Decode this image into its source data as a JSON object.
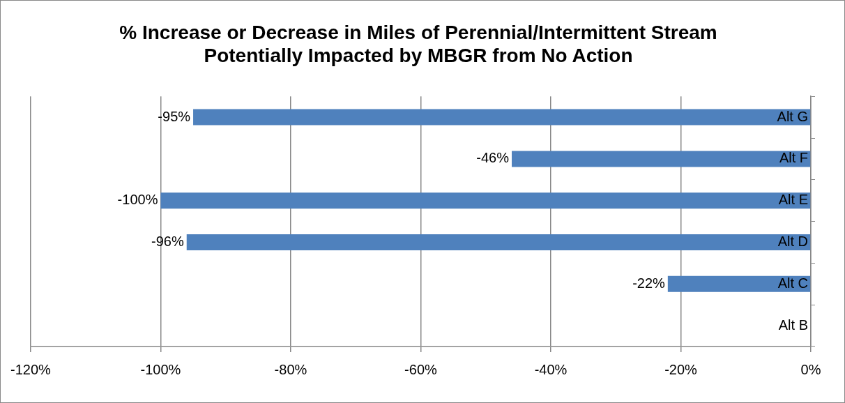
{
  "chart_data": {
    "type": "bar",
    "orientation": "horizontal",
    "title": [
      "% Increase or Decrease in Miles of Perennial/Intermittent Stream",
      "Potentially Impacted by MBGR from No Action"
    ],
    "categories": [
      "Alt G",
      "Alt F",
      "Alt E",
      "Alt D",
      "Alt C",
      "Alt B"
    ],
    "values": [
      -95,
      -46,
      -100,
      -96,
      -22,
      0
    ],
    "value_labels": [
      "-95%",
      "-46%",
      "-100%",
      "-96%",
      "-22%",
      null
    ],
    "color": "#4f81bd",
    "xlim": [
      -120,
      0
    ],
    "xticks": [
      {
        "value": -120,
        "label": "-120%"
      },
      {
        "value": -100,
        "label": "-100%"
      },
      {
        "value": -80,
        "label": "-80%"
      },
      {
        "value": -60,
        "label": "-60%"
      },
      {
        "value": -40,
        "label": "-40%"
      },
      {
        "value": -20,
        "label": "-20%"
      },
      {
        "value": 0,
        "label": "0%"
      }
    ],
    "grid": "x",
    "legend": false
  }
}
